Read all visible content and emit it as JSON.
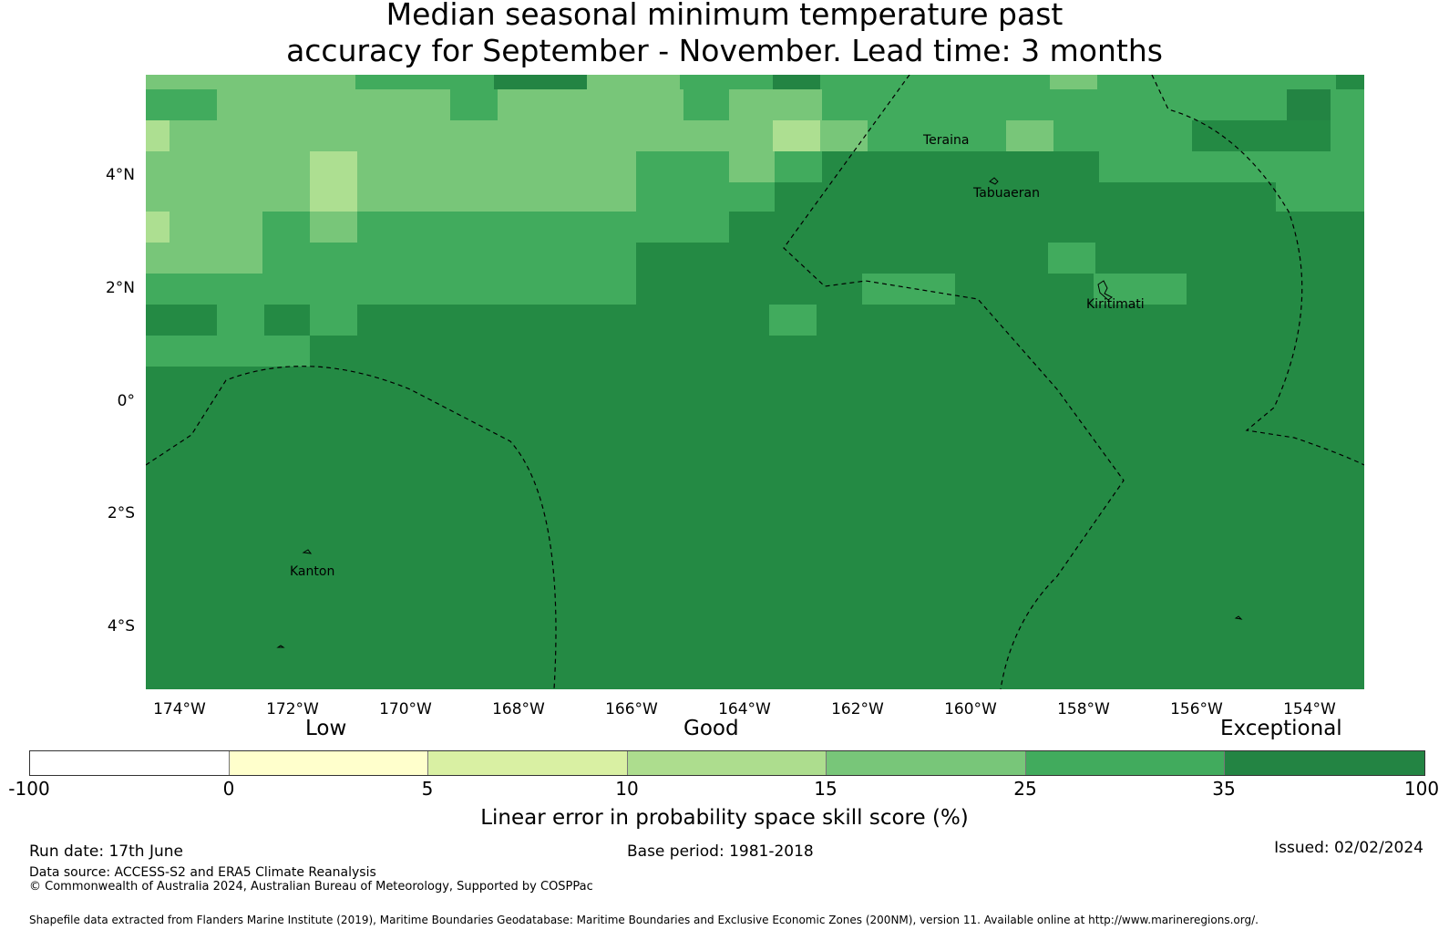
{
  "title_line1": "Median seasonal minimum temperature past",
  "title_line2": "accuracy for September - November. Lead time: 3 months",
  "map": {
    "lat_labels": [
      "4°N",
      "2°N",
      "0°",
      "2°S",
      "4°S"
    ],
    "lon_labels": [
      "174°W",
      "172°W",
      "170°W",
      "168°W",
      "166°W",
      "164°W",
      "162°W",
      "160°W",
      "158°W",
      "156°W",
      "154°W"
    ],
    "places": [
      "Teraina",
      "Tabuaeran",
      "Kiritimati",
      "Kanton"
    ],
    "colors": {
      "c5_10": "#d8eea5",
      "c10_15": "#addf91",
      "c15_25": "#78c679",
      "c25_35": "#41ab5d",
      "c35_100": "#238443"
    }
  },
  "colorbar": {
    "words": [
      "Low",
      "Good",
      "Exceptional"
    ],
    "ticks": [
      "-100",
      "0",
      "5",
      "10",
      "15",
      "25",
      "35",
      "100"
    ],
    "colors": [
      "#ffffff",
      "#ffffcc",
      "#d9f0a3",
      "#addd8e",
      "#78c679",
      "#41ab5d",
      "#238443"
    ],
    "label": "Linear error in probability space skill score (%)"
  },
  "footer": {
    "run_date": "Run date: 17th June",
    "base_period": "Base period: 1981-2018",
    "issued": "Issued: 02/02/2024",
    "data_source": "Data source: ACCESS-S2 and ERA5 Climate Reanalysis",
    "copyright": "© Commonwealth of Australia 2024, Australian Bureau of Meteorology, Supported by COSPPac",
    "shapefile": "Shapefile data extracted from Flanders Marine Institute (2019), Maritime Boundaries Geodatabase: Maritime Boundaries and Exclusive Economic Zones (200NM), version 11. Available online at http://www.marineregions.org/."
  }
}
